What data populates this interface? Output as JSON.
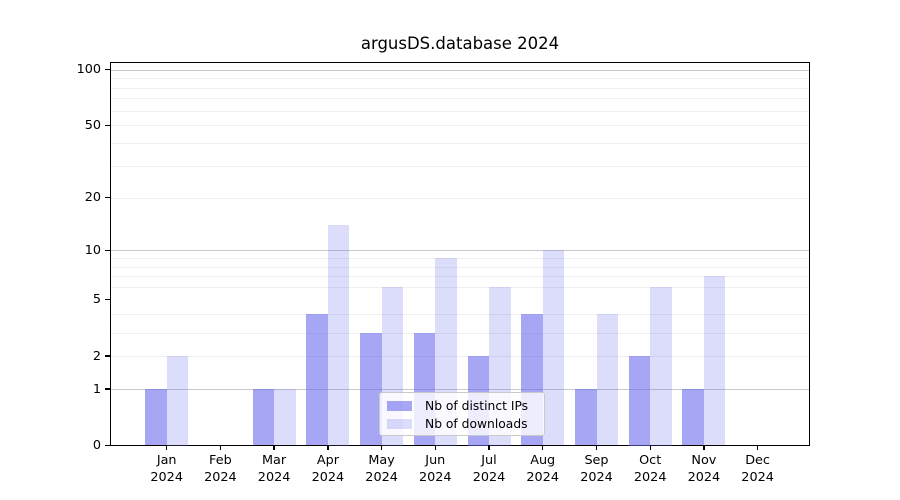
{
  "figure": {
    "background": "#ffffff",
    "text_color": "#000000"
  },
  "chart_data": {
    "type": "bar",
    "title": "argusDS.database 2024",
    "xlabel": "",
    "ylabel": "",
    "categories": [
      "Jan 2024",
      "Feb 2024",
      "Mar 2024",
      "Apr 2024",
      "May 2024",
      "Jun 2024",
      "Jul 2024",
      "Aug 2024",
      "Sep 2024",
      "Oct 2024",
      "Nov 2024",
      "Dec 2024"
    ],
    "series": [
      {
        "name": "Nb of distinct IPs",
        "color": "#a7a7f5",
        "base_color": "#6666ee",
        "alpha": 0.58,
        "values": [
          1,
          0,
          1,
          4,
          3,
          3,
          2,
          4,
          1,
          2,
          1,
          0
        ]
      },
      {
        "name": "Nb of downloads",
        "color": "#dcdcf8",
        "base_color": "#6666ee",
        "alpha": 0.23,
        "values": [
          2,
          0,
          1,
          14,
          6,
          9,
          6,
          10,
          4,
          6,
          7,
          0
        ]
      }
    ],
    "yscale": "log1p",
    "ylim": [
      0,
      111
    ],
    "yticks": [
      0,
      1,
      2,
      5,
      10,
      20,
      50,
      100
    ],
    "grid": true,
    "grid_major_values": [
      1,
      10,
      100
    ],
    "grid_minor_values": [
      2,
      3,
      4,
      6,
      7,
      8,
      9,
      20,
      30,
      40,
      50,
      60,
      70,
      80,
      90
    ],
    "grid_major_color": "#c9c9c9",
    "grid_minor_color": "#efefef",
    "legend_position": "lower center"
  }
}
